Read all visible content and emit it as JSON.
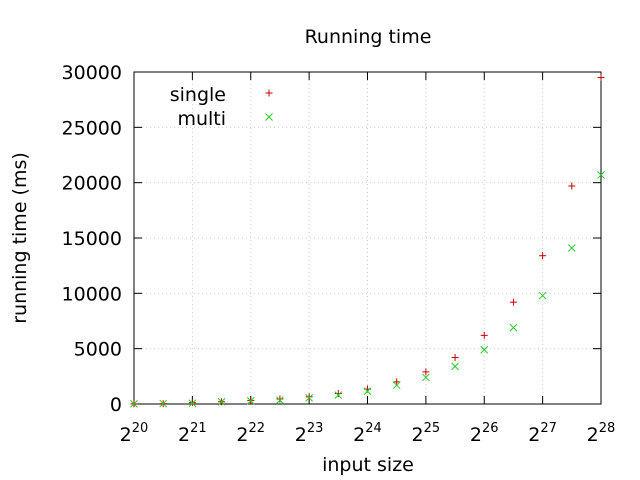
{
  "chart_data": {
    "type": "scatter",
    "title": "Running time",
    "xlabel": "input size",
    "ylabel": "running time (ms)",
    "x_scale": "log2",
    "x_tick_base": "2",
    "x_tick_exponents": [
      "20",
      "21",
      "22",
      "23",
      "24",
      "25",
      "26",
      "27",
      "28"
    ],
    "xlim": [
      1048576,
      268435456
    ],
    "ylim": [
      0,
      30000
    ],
    "y_ticks": [
      "0",
      "5000",
      "10000",
      "15000",
      "20000",
      "25000",
      "30000"
    ],
    "grid": true,
    "legend_position": "top-left",
    "x": [
      1048576,
      1482910,
      2097152,
      2965821,
      4194304,
      5931642,
      8388608,
      11863283,
      16777216,
      23726566,
      33554432,
      47453133,
      67108864,
      94906266,
      134217728,
      189812531,
      268435456
    ],
    "series": [
      {
        "name": "single",
        "marker": "plus",
        "color": "#cc0000",
        "values": [
          10,
          30,
          130,
          200,
          320,
          450,
          650,
          950,
          1350,
          2000,
          2900,
          4200,
          6200,
          9200,
          13400,
          19700,
          29500
        ]
      },
      {
        "name": "multi",
        "marker": "cross",
        "color": "#22cc22",
        "values": [
          10,
          40,
          70,
          200,
          280,
          340,
          550,
          800,
          1150,
          1700,
          2400,
          3400,
          4900,
          6900,
          9800,
          14100,
          20700
        ]
      }
    ]
  }
}
